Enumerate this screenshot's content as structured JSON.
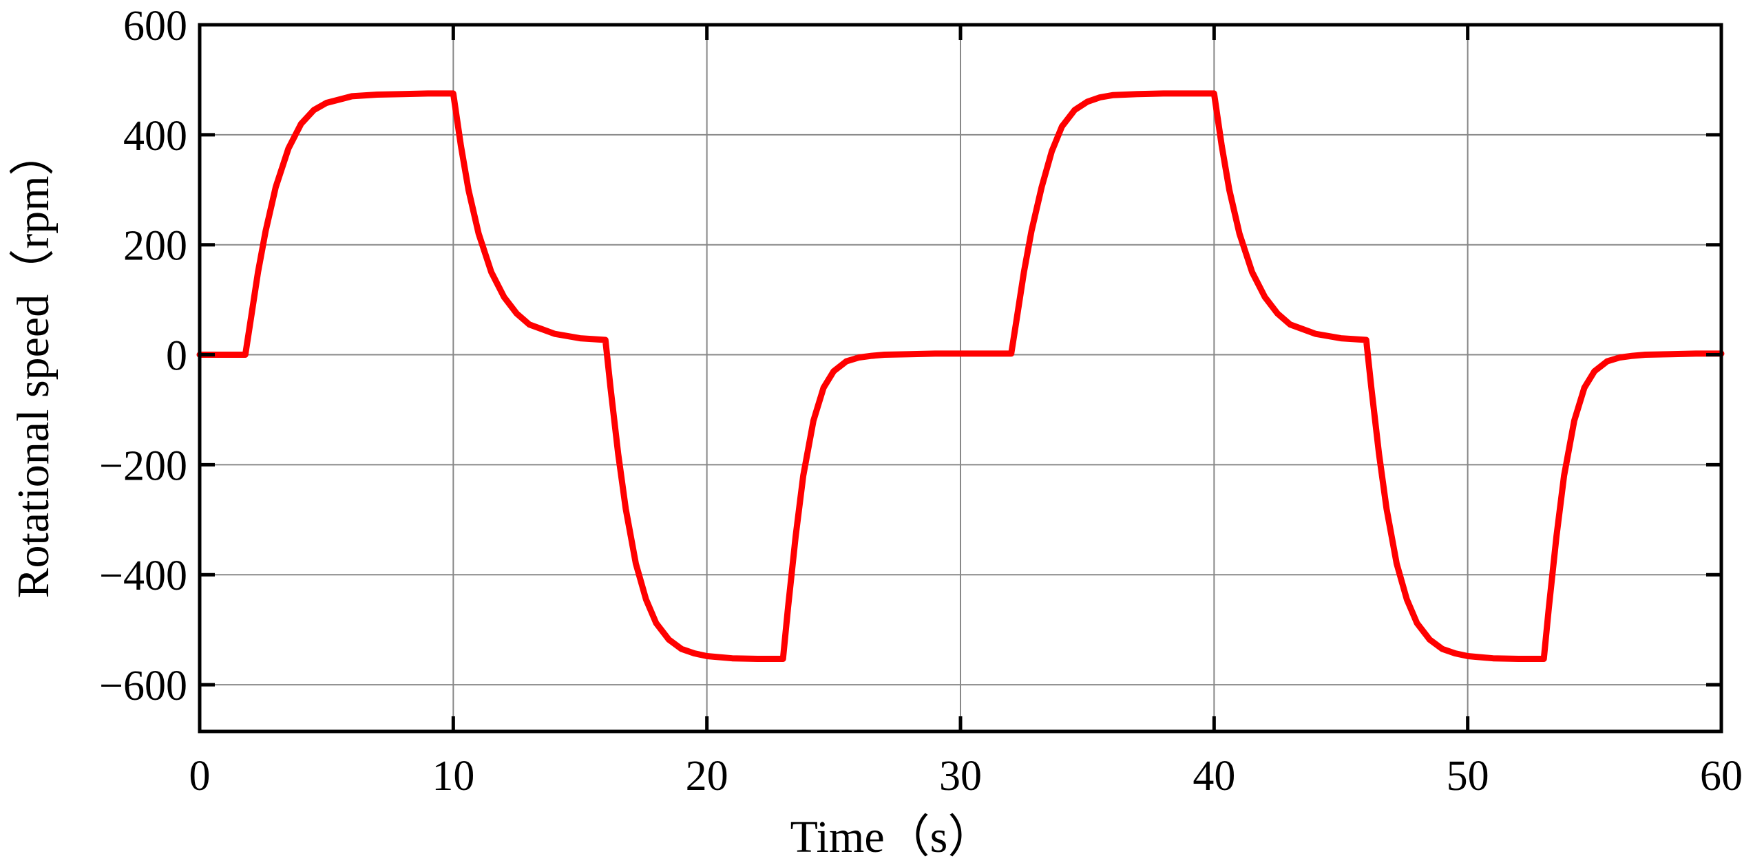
{
  "chart_data": {
    "type": "line",
    "title": "",
    "xlabel": "Time（s）",
    "ylabel": "Rotational speed（rpm）",
    "xlim": [
      0,
      60
    ],
    "ylim": [
      -685,
      600
    ],
    "xticks": [
      0,
      10,
      20,
      30,
      40,
      50,
      60
    ],
    "xtick_labels": [
      "0",
      "10",
      "20",
      "30",
      "40",
      "50",
      "60"
    ],
    "yticks": [
      600,
      400,
      200,
      0,
      -200,
      -400,
      -600
    ],
    "ytick_labels": [
      "600",
      "400",
      "200",
      "0",
      "−200",
      "−400",
      "−600"
    ],
    "grid": true,
    "legend": "none",
    "colors": {
      "series": "#ff0000",
      "grid": "#888888",
      "axes": "#000000"
    },
    "series": [
      {
        "name": "",
        "x": [
          0,
          1.8,
          2.0,
          2.3,
          2.6,
          3.0,
          3.5,
          4.0,
          4.5,
          5.0,
          6.0,
          7.0,
          8.0,
          9.0,
          10.0,
          10.3,
          10.6,
          11.0,
          11.5,
          12.0,
          12.5,
          13.0,
          14.0,
          15.0,
          16.0,
          16.2,
          16.5,
          16.8,
          17.2,
          17.6,
          18.0,
          18.5,
          19.0,
          19.5,
          20.0,
          21.0,
          22.0,
          23.0,
          23.2,
          23.5,
          23.8,
          24.2,
          24.6,
          25.0,
          25.5,
          26.0,
          26.5,
          27.0,
          28.0,
          29.0,
          30.0,
          31.0,
          32.0,
          32.2,
          32.5,
          32.8,
          33.2,
          33.6,
          34.0,
          34.5,
          35.0,
          35.5,
          36.0,
          37.0,
          38.0,
          39.0,
          40.0,
          40.3,
          40.6,
          41.0,
          41.5,
          42.0,
          42.5,
          43.0,
          44.0,
          45.0,
          46.0,
          46.2,
          46.5,
          46.8,
          47.2,
          47.6,
          48.0,
          48.5,
          49.0,
          49.5,
          50.0,
          51.0,
          52.0,
          53.0,
          53.2,
          53.5,
          53.8,
          54.2,
          54.6,
          55.0,
          55.5,
          56.0,
          56.5,
          57.0,
          58.0,
          59.0,
          60.0
        ],
        "y": [
          0,
          0,
          60,
          150,
          225,
          305,
          375,
          420,
          445,
          458,
          470,
          473,
          474,
          475,
          475,
          380,
          300,
          220,
          150,
          105,
          75,
          55,
          38,
          30,
          27,
          -60,
          -180,
          -280,
          -380,
          -445,
          -488,
          -518,
          -535,
          -543,
          -548,
          -552,
          -553,
          -553,
          -460,
          -330,
          -220,
          -120,
          -60,
          -30,
          -12,
          -5,
          -2,
          0,
          1,
          2,
          2,
          2,
          2,
          60,
          150,
          225,
          305,
          370,
          415,
          445,
          460,
          468,
          472,
          474,
          475,
          475,
          475,
          380,
          300,
          220,
          150,
          105,
          75,
          55,
          38,
          30,
          27,
          -60,
          -180,
          -280,
          -380,
          -445,
          -488,
          -518,
          -535,
          -543,
          -548,
          -552,
          -553,
          -553,
          -460,
          -330,
          -220,
          -120,
          -60,
          -30,
          -12,
          -5,
          -2,
          0,
          1,
          2,
          2
        ]
      }
    ]
  }
}
